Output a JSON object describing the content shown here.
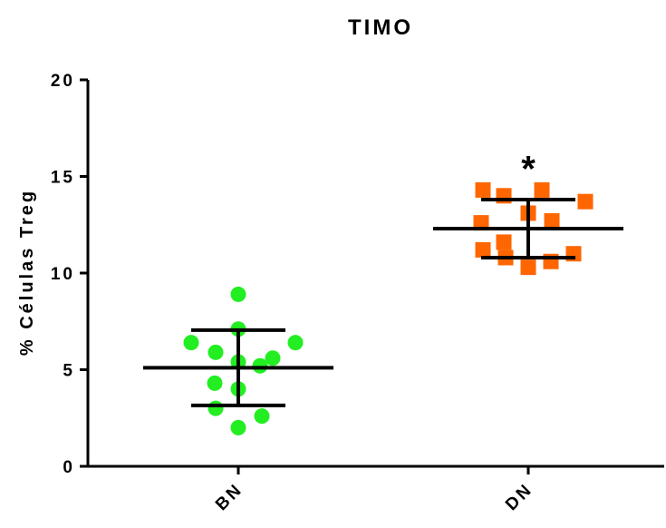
{
  "chart_data": {
    "type": "scatter",
    "title": "TIMO",
    "xlabel": "",
    "ylabel": "% Células Treg",
    "ylim": [
      0,
      20
    ],
    "yticks": [
      "0",
      "5",
      "10",
      "15",
      "20"
    ],
    "grid": false,
    "legend": "none",
    "categories": [
      "BN",
      "DN"
    ],
    "series": [
      {
        "category": "BN",
        "marker": "circle",
        "color": "#22ee22",
        "values": [
          8.9,
          7.1,
          6.4,
          6.4,
          5.9,
          5.6,
          5.4,
          5.2,
          4.3,
          4.0,
          3.0,
          2.6,
          2.0
        ],
        "mean": 5.1,
        "sd": 1.95,
        "annotation": ""
      },
      {
        "category": "DN",
        "marker": "square",
        "color": "#ff6600",
        "values": [
          14.3,
          14.3,
          14.0,
          13.7,
          13.1,
          12.7,
          12.6,
          11.6,
          11.2,
          11.0,
          10.8,
          10.6,
          10.3
        ],
        "mean": 12.3,
        "sd": 1.5,
        "annotation": "*"
      }
    ]
  }
}
